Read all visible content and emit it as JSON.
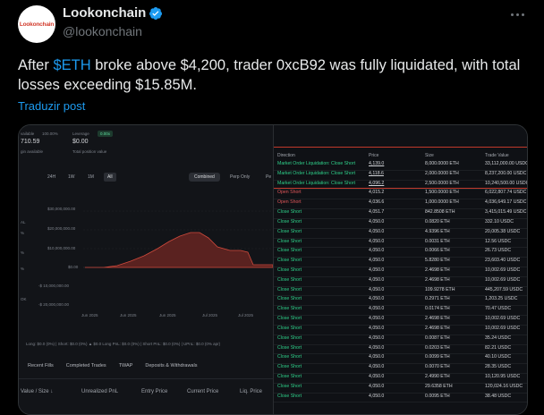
{
  "tweet": {
    "avatar_text": "Lookonchain",
    "display_name": "Lookonchain",
    "handle": "@lookonchain",
    "text_before": "After ",
    "cashtag": "$ETH",
    "text_after": " broke above $4,200, trader 0xcB92 was fully liquidated, with total losses exceeding $15.85M.",
    "translate_label": "Traduzir post",
    "colors": {
      "link": "#1d9bf0",
      "verified": "#1d9bf0"
    }
  },
  "left_panel": {
    "available_label": "vailable",
    "available_pct": "100.00%",
    "available_value": "710.59",
    "available_sub": "gin available",
    "leverage_label": "Leverage",
    "leverage_badge": "0.00x",
    "leverage_value": "$0.00",
    "leverage_sub": "Total position value",
    "timeframes": [
      "24H",
      "1W",
      "1M",
      "All"
    ],
    "selected_timeframe": "All",
    "modes": [
      "Combined",
      "Perp Only",
      "Pe"
    ],
    "selected_mode": "Combined",
    "chart_yticks": [
      "$30,000,000.00",
      "$20,000,000.00",
      "$10,000,000.00",
      "$0.00",
      "-$ 10,000,000.00",
      "-$ 20,000,000.00"
    ],
    "chart_xticks": [
      "Jun 2025",
      "Jun 2025",
      "Jun 2025",
      "Jul 2025",
      "Jul 2025"
    ],
    "side_labels": [
      "AL",
      "%",
      "%",
      "%",
      "OK"
    ],
    "pnl_row": "Long: $0.0 (0%)  |  Short: $0.0 (0%)  ▲ $0.0  Long PnL: $0.0 (0%)  |  Short PnL: $0.0 (0%)  |  UPnL: $0.0 (0% apr)",
    "tabs": [
      "Recent Fills",
      "Completed Trades",
      "TWAP",
      "Deposits & Withdrawals"
    ],
    "table_headers": [
      "Value / Size ↓",
      "Unrealized PnL",
      "Entry Price",
      "Current Price",
      "Liq. Price"
    ]
  },
  "right_panel": {
    "headers": [
      "Direction",
      "Price",
      "Size",
      "Trade Value"
    ],
    "rows": [
      {
        "dir": "Market Order Liquidation: Close Short",
        "price": "4,139.0",
        "size": "8,000.0000 ETH",
        "value": "33,112,000.00 USDC",
        "type": "close",
        "underline": true
      },
      {
        "dir": "Market Order Liquidation: Close Short",
        "price": "4,118.6",
        "size": "2,000.0000 ETH",
        "value": "8,237,200.00 USDC",
        "type": "close",
        "underline": true
      },
      {
        "dir": "Market Order Liquidation: Close Short",
        "price": "4,096.2",
        "size": "2,500.0000 ETH",
        "value": "10,240,500.00 USDC",
        "type": "close",
        "underline": true
      },
      {
        "dir": "Open Short",
        "price": "4,015.2",
        "size": "1,500.0000 ETH",
        "value": "6,022,807.74 USDC",
        "type": "open"
      },
      {
        "dir": "Open Short",
        "price": "4,036.6",
        "size": "1,000.0000 ETH",
        "value": "4,036,649.17 USDC",
        "type": "open"
      },
      {
        "dir": "Close Short",
        "price": "4,051.7",
        "size": "842.8508 ETH",
        "value": "3,415,015.49 USDC",
        "type": "close"
      },
      {
        "dir": "Close Short",
        "price": "4,050.0",
        "size": "0.0820 ETH",
        "value": "332.10 USDC",
        "type": "close"
      },
      {
        "dir": "Close Short",
        "price": "4,050.0",
        "size": "4.9396 ETH",
        "value": "20,005.38 USDC",
        "type": "close"
      },
      {
        "dir": "Close Short",
        "price": "4,050.0",
        "size": "0.0031 ETH",
        "value": "12.56 USDC",
        "type": "close"
      },
      {
        "dir": "Close Short",
        "price": "4,050.0",
        "size": "0.0066 ETH",
        "value": "26.73 USDC",
        "type": "close"
      },
      {
        "dir": "Close Short",
        "price": "4,050.0",
        "size": "5.8280 ETH",
        "value": "23,603.40 USDC",
        "type": "close"
      },
      {
        "dir": "Close Short",
        "price": "4,050.0",
        "size": "2.4698 ETH",
        "value": "10,002.69 USDC",
        "type": "close"
      },
      {
        "dir": "Close Short",
        "price": "4,050.0",
        "size": "2.4698 ETH",
        "value": "10,002.69 USDC",
        "type": "close"
      },
      {
        "dir": "Close Short",
        "price": "4,050.0",
        "size": "109.9278 ETH",
        "value": "445,207.59 USDC",
        "type": "close"
      },
      {
        "dir": "Close Short",
        "price": "4,050.0",
        "size": "0.2971 ETH",
        "value": "1,203.25 USDC",
        "type": "close"
      },
      {
        "dir": "Close Short",
        "price": "4,050.0",
        "size": "0.0174 ETH",
        "value": "70.47 USDC",
        "type": "close"
      },
      {
        "dir": "Close Short",
        "price": "4,050.0",
        "size": "2.4698 ETH",
        "value": "10,002.69 USDC",
        "type": "close"
      },
      {
        "dir": "Close Short",
        "price": "4,050.0",
        "size": "2.4698 ETH",
        "value": "10,002.69 USDC",
        "type": "close"
      },
      {
        "dir": "Close Short",
        "price": "4,050.0",
        "size": "0.0087 ETH",
        "value": "35.24 USDC",
        "type": "close"
      },
      {
        "dir": "Close Short",
        "price": "4,050.0",
        "size": "0.0203 ETH",
        "value": "82.21 USDC",
        "type": "close"
      },
      {
        "dir": "Close Short",
        "price": "4,050.0",
        "size": "0.0099 ETH",
        "value": "40.10 USDC",
        "type": "close"
      },
      {
        "dir": "Close Short",
        "price": "4,050.0",
        "size": "0.0070 ETH",
        "value": "28.35 USDC",
        "type": "close"
      },
      {
        "dir": "Close Short",
        "price": "4,050.0",
        "size": "2.4990 ETH",
        "value": "10,120.95 USDC",
        "type": "close"
      },
      {
        "dir": "Close Short",
        "price": "4,050.0",
        "size": "29.6358 ETH",
        "value": "120,024.16 USDC",
        "type": "close"
      },
      {
        "dir": "Close Short",
        "price": "4,050.0",
        "size": "0.0095 ETH",
        "value": "38.48 USDC",
        "type": "close"
      }
    ],
    "colors": {
      "close": "#2fd08a",
      "open": "#e0575a",
      "separator": "#c0392b"
    }
  }
}
